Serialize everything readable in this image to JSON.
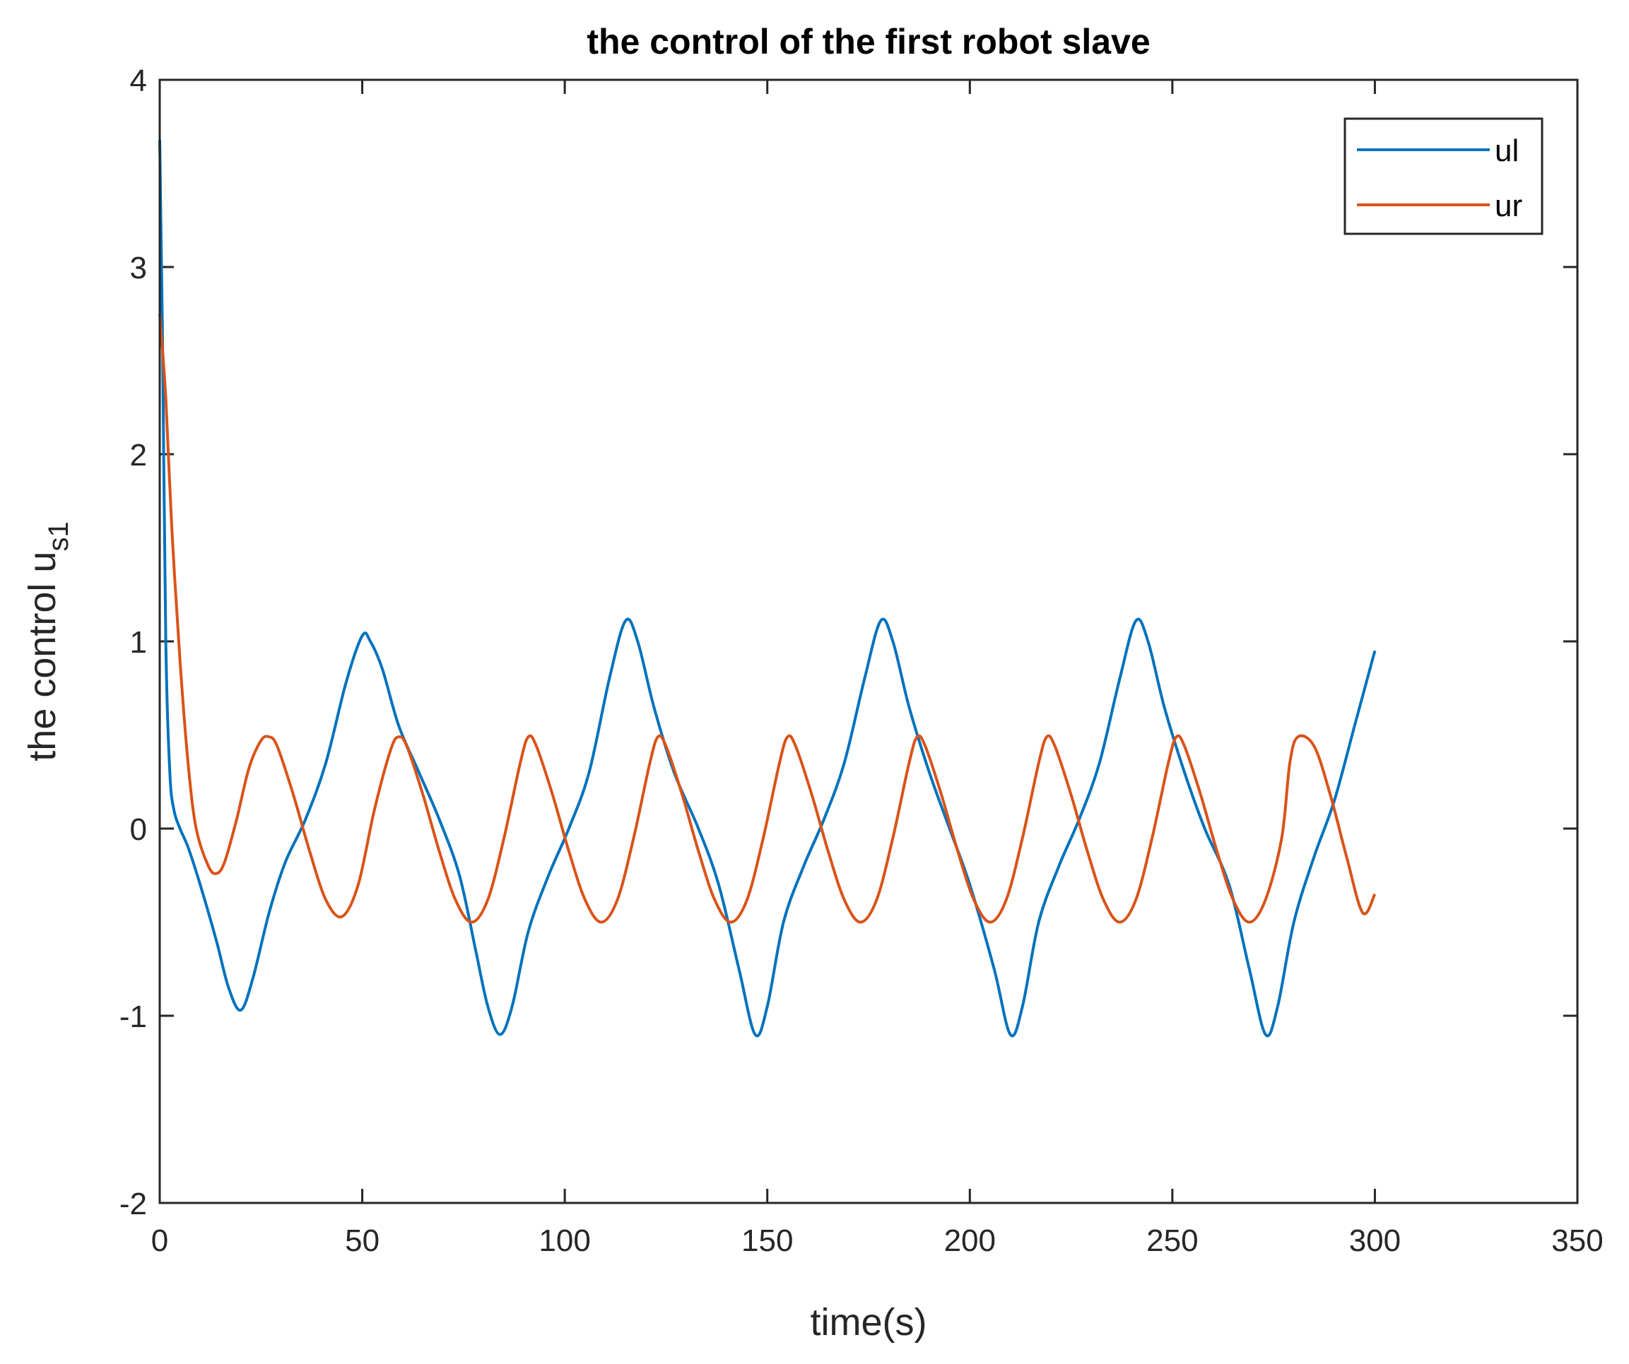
{
  "chart_data": {
    "type": "line",
    "title": "the control of the first robot slave",
    "xlabel": "time(s)",
    "ylabel": {
      "main": "the control u",
      "subscript": "s1"
    },
    "xlim": [
      0,
      350
    ],
    "ylim": [
      -2,
      4
    ],
    "xticks": [
      0,
      50,
      100,
      150,
      200,
      250,
      300,
      350
    ],
    "yticks": [
      -2,
      -1,
      0,
      1,
      2,
      3,
      4
    ],
    "grid": false,
    "legend_position": "top-right",
    "series": [
      {
        "name": "ul",
        "color": "#0072BD",
        "x": [
          0,
          0.7,
          1.5,
          2.5,
          3.5,
          5,
          7,
          10,
          14,
          17,
          20,
          23,
          27,
          31,
          36,
          41,
          46,
          50,
          52,
          55,
          59,
          64,
          69,
          74,
          78,
          81,
          84,
          87,
          91,
          96,
          101,
          106,
          111,
          115,
          118,
          122,
          127,
          133,
          138,
          143,
          147,
          150,
          154,
          159,
          164,
          169,
          174,
          178,
          181,
          185,
          190,
          195,
          200,
          206,
          210,
          213,
          217,
          222,
          227,
          232,
          237,
          241,
          244,
          248,
          253,
          258,
          264,
          269,
          273,
          276,
          280,
          285,
          290,
          295,
          300
        ],
        "y": [
          3.68,
          2.6,
          1.0,
          0.3,
          0.1,
          0.0,
          -0.1,
          -0.3,
          -0.6,
          -0.85,
          -0.97,
          -0.8,
          -0.45,
          -0.18,
          0.05,
          0.35,
          0.78,
          1.03,
          1.0,
          0.85,
          0.55,
          0.3,
          0.05,
          -0.25,
          -0.65,
          -0.95,
          -1.1,
          -0.95,
          -0.55,
          -0.25,
          0.0,
          0.3,
          0.8,
          1.11,
          1.0,
          0.65,
          0.3,
          0.0,
          -0.3,
          -0.75,
          -1.1,
          -0.95,
          -0.5,
          -0.2,
          0.05,
          0.35,
          0.8,
          1.11,
          1.0,
          0.65,
          0.3,
          0.0,
          -0.3,
          -0.75,
          -1.1,
          -0.95,
          -0.5,
          -0.2,
          0.05,
          0.35,
          0.8,
          1.11,
          1.0,
          0.65,
          0.3,
          0.0,
          -0.3,
          -0.75,
          -1.1,
          -0.95,
          -0.5,
          -0.15,
          0.15,
          0.55,
          0.95
        ]
      },
      {
        "name": "ur",
        "color": "#D95319",
        "x": [
          0,
          1.5,
          3,
          5,
          7,
          9,
          12,
          14,
          16,
          19,
          22,
          25,
          27,
          29,
          33,
          37,
          41,
          45,
          49,
          53,
          57,
          59,
          61,
          65,
          69,
          73,
          77,
          81,
          85,
          89,
          91,
          93,
          97,
          101,
          105,
          109,
          113,
          117,
          121,
          123,
          125,
          129,
          133,
          137,
          141,
          145,
          149,
          153,
          155,
          157,
          161,
          165,
          169,
          173,
          177,
          181,
          185,
          187,
          189,
          193,
          197,
          201,
          205,
          209,
          213,
          217,
          219,
          221,
          225,
          229,
          233,
          237,
          241,
          245,
          249,
          251,
          253,
          257,
          261,
          265,
          269,
          273,
          277,
          279,
          281,
          285,
          289,
          293,
          297,
          300
        ],
        "y": [
          2.75,
          2.3,
          1.6,
          0.9,
          0.35,
          0.0,
          -0.2,
          -0.24,
          -0.18,
          0.05,
          0.32,
          0.47,
          0.49,
          0.44,
          0.18,
          -0.12,
          -0.38,
          -0.47,
          -0.3,
          0.1,
          0.42,
          0.49,
          0.44,
          0.18,
          -0.12,
          -0.38,
          -0.5,
          -0.38,
          -0.05,
          0.35,
          0.49,
          0.44,
          0.18,
          -0.12,
          -0.38,
          -0.5,
          -0.38,
          -0.05,
          0.35,
          0.49,
          0.44,
          0.18,
          -0.12,
          -0.38,
          -0.5,
          -0.38,
          -0.05,
          0.35,
          0.49,
          0.44,
          0.18,
          -0.12,
          -0.38,
          -0.5,
          -0.38,
          -0.05,
          0.35,
          0.49,
          0.44,
          0.18,
          -0.12,
          -0.38,
          -0.5,
          -0.38,
          -0.05,
          0.35,
          0.49,
          0.44,
          0.18,
          -0.12,
          -0.38,
          -0.5,
          -0.38,
          -0.05,
          0.35,
          0.49,
          0.44,
          0.18,
          -0.12,
          -0.38,
          -0.5,
          -0.38,
          -0.05,
          0.35,
          0.49,
          0.44,
          0.18,
          -0.15,
          -0.45,
          -0.35
        ]
      }
    ]
  }
}
